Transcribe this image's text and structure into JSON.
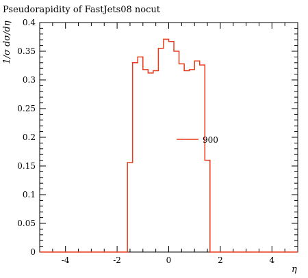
{
  "chart_data": {
    "type": "line",
    "title": "Pseudorapidity of FastJets08 nocut",
    "xlabel": "η",
    "ylabel": "1/σ dσ/dη",
    "xlim": [
      -5,
      5
    ],
    "ylim": [
      0,
      0.4
    ],
    "x_ticks": [
      -4,
      -2,
      0,
      2,
      4
    ],
    "y_ticks": [
      0,
      0.05,
      0.1,
      0.15,
      0.2,
      0.25,
      0.3,
      0.35,
      0.4
    ],
    "x_tick_labels": [
      "-4",
      "-2",
      "0",
      "2",
      "4"
    ],
    "y_tick_labels": [
      "0",
      "0.05",
      "0.1",
      "0.15",
      "0.2",
      "0.25",
      "0.3",
      "0.35",
      "0.4"
    ],
    "grid": false,
    "legend": "center-right",
    "series": [
      {
        "name": "900",
        "color": "#e8391a",
        "step": true,
        "bin_edges": [
          -5.0,
          -1.6,
          -1.4,
          -1.2,
          -1.0,
          -0.8,
          -0.6,
          -0.4,
          -0.2,
          0.0,
          0.2,
          0.4,
          0.6,
          0.8,
          1.0,
          1.2,
          1.4,
          1.6,
          5.0
        ],
        "values": [
          0,
          0.156,
          0.33,
          0.34,
          0.318,
          0.312,
          0.316,
          0.355,
          0.371,
          0.367,
          0.35,
          0.328,
          0.316,
          0.318,
          0.333,
          0.326,
          0.16,
          0
        ]
      }
    ]
  }
}
